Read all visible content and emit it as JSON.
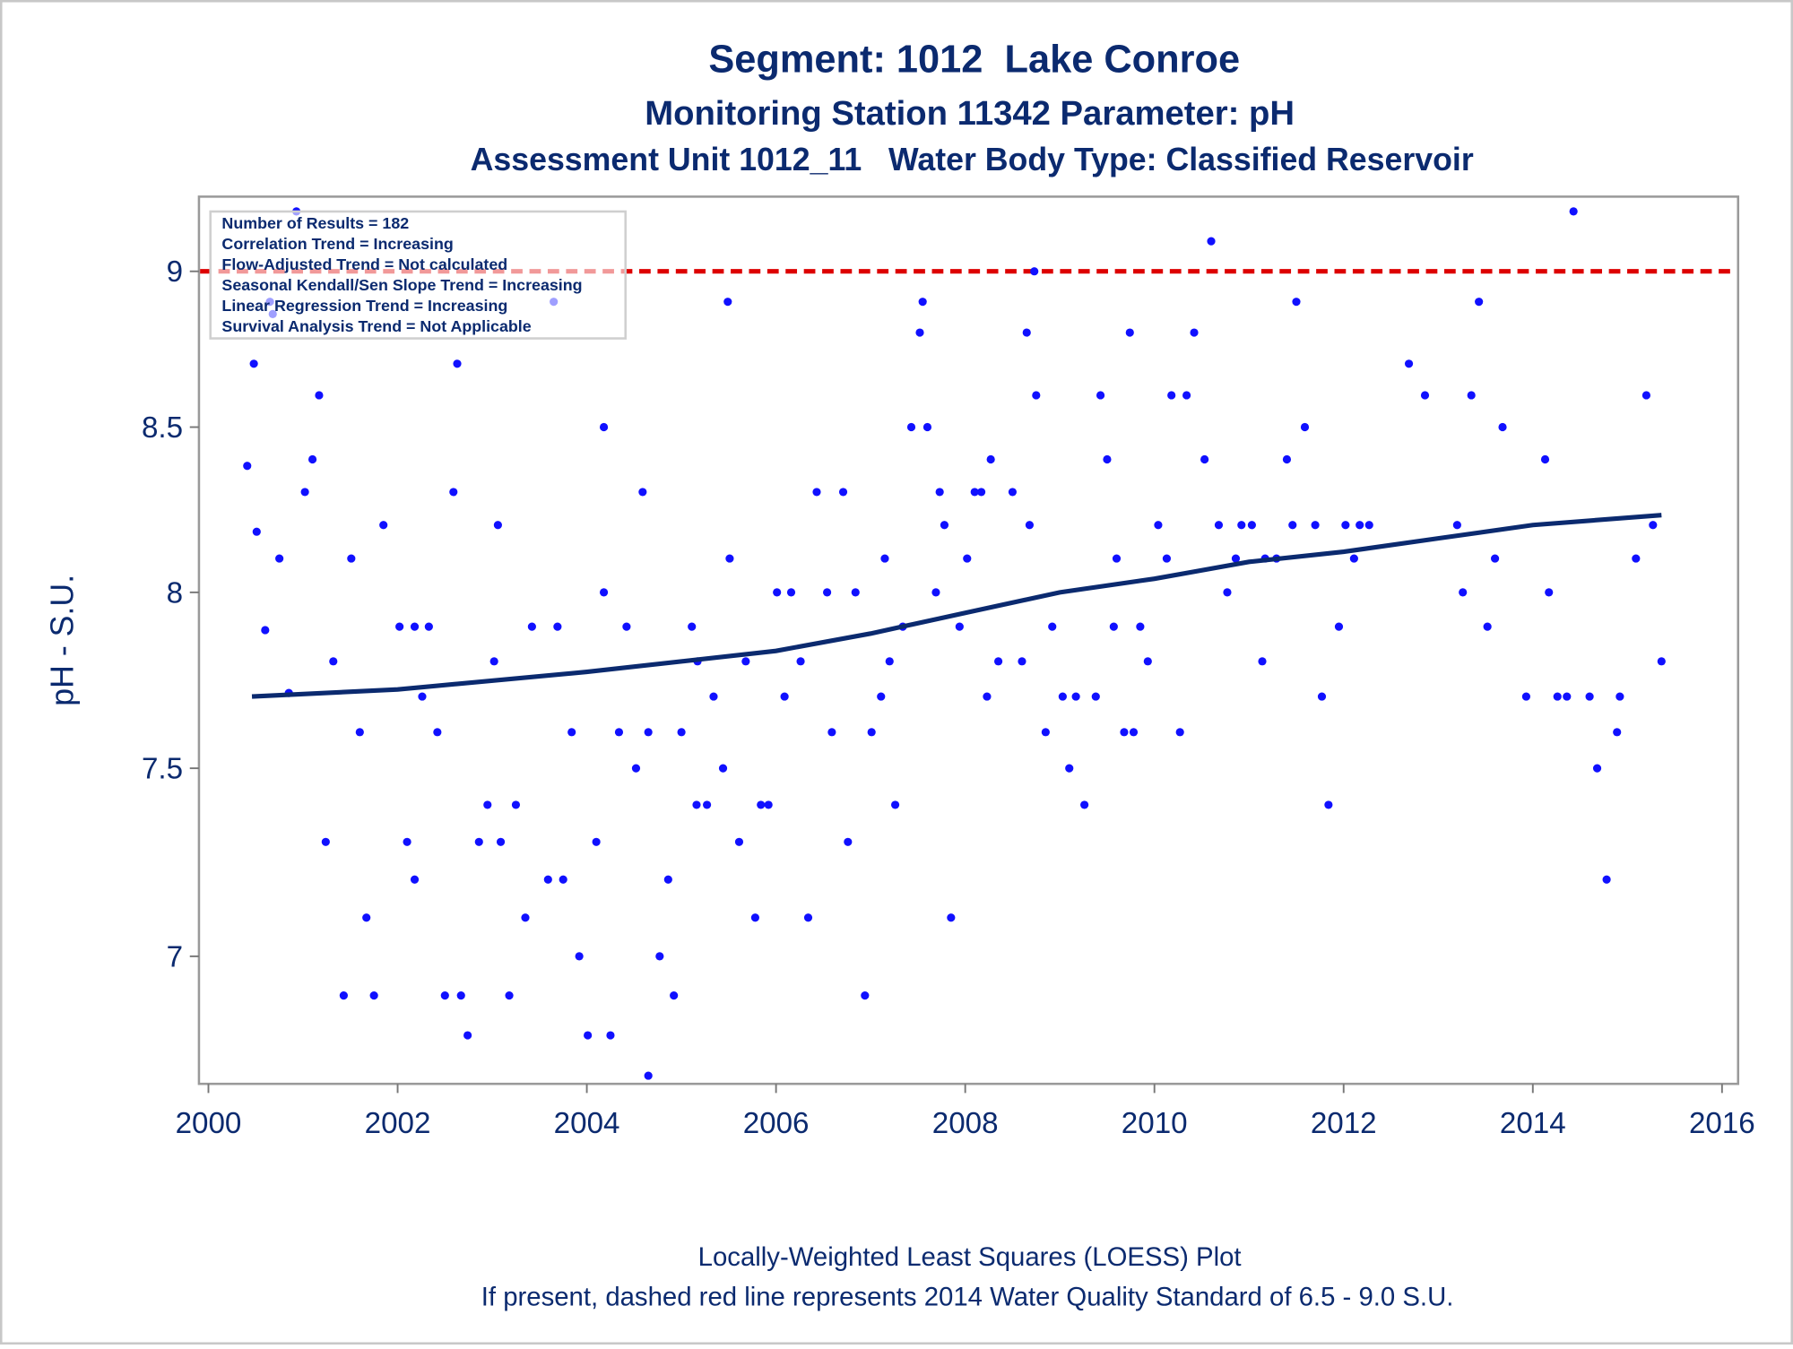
{
  "chart_data": {
    "type": "scatter",
    "title": "Segment: 1012  Lake Conroe",
    "subtitle": "Monitoring Station 11342 Parameter: pH",
    "subtitle2": "Assessment Unit 1012_11   Water Body Type: Classified Reservoir",
    "y_label": "pH - S.U.",
    "annotations": [
      "Number of Results = 182",
      "Correlation Trend = Increasing",
      "Flow-Adjusted Trend = Not calculated",
      "Seasonal Kendall/Sen Slope Trend = Increasing",
      "Linear Regression Trend = Increasing",
      "Survival Analysis Trend = Not Applicable"
    ],
    "footnotes": [
      "Locally-Weighted Least Squares (LOESS) Plot",
      "If present, dashed red line represents 2014 Water Quality Standard of 6.5 - 9.0 S.U."
    ],
    "xlim": [
      1999.9,
      2016.17
    ],
    "xticks": [
      2000,
      2002,
      2004,
      2006,
      2008,
      2010,
      2012,
      2014,
      2016
    ],
    "ylim": [
      6.68,
      9.25
    ],
    "yticks": [
      7,
      7.5,
      8,
      8.5,
      9
    ],
    "log_y": true,
    "grid": false,
    "color": "#1010ff",
    "reference_line": {
      "value": 9,
      "color": "#dd0000"
    },
    "x": [
      2000.41,
      2000.48,
      2000.51,
      2000.6,
      2000.65,
      2000.68,
      2000.75,
      2000.85,
      2000.93,
      2001.02,
      2001.1,
      2001.17,
      2001.24,
      2001.32,
      2001.43,
      2001.51,
      2001.6,
      2001.67,
      2001.75,
      2001.85,
      2002.02,
      2002.1,
      2002.18,
      2002.18,
      2002.26,
      2002.33,
      2002.42,
      2002.5,
      2002.59,
      2002.63,
      2002.67,
      2002.74,
      2002.86,
      2002.95,
      2003.02,
      2003.06,
      2003.09,
      2003.18,
      2003.25,
      2003.35,
      2003.42,
      2003.59,
      2003.65,
      2003.69,
      2003.75,
      2003.84,
      2003.92,
      2004.01,
      2004.1,
      2004.18,
      2004.18,
      2004.25,
      2004.34,
      2004.42,
      2004.52,
      2004.59,
      2004.65,
      2004.65,
      2004.77,
      2004.86,
      2004.92,
      2005.0,
      2005.11,
      2005.16,
      2005.17,
      2005.27,
      2005.34,
      2005.44,
      2005.49,
      2005.51,
      2005.61,
      2005.68,
      2005.78,
      2005.84,
      2005.92,
      2006.01,
      2006.09,
      2006.16,
      2006.26,
      2006.34,
      2006.43,
      2006.54,
      2006.59,
      2006.71,
      2006.76,
      2006.84,
      2006.94,
      2007.01,
      2007.11,
      2007.15,
      2007.2,
      2007.26,
      2007.34,
      2007.43,
      2007.52,
      2007.55,
      2007.6,
      2007.69,
      2007.73,
      2007.78,
      2007.85,
      2007.94,
      2008.02,
      2008.1,
      2008.17,
      2008.23,
      2008.27,
      2008.35,
      2008.5,
      2008.6,
      2008.65,
      2008.68,
      2008.73,
      2008.75,
      2008.85,
      2008.92,
      2009.03,
      2009.1,
      2009.17,
      2009.26,
      2009.38,
      2009.43,
      2009.5,
      2009.57,
      2009.6,
      2009.68,
      2009.74,
      2009.78,
      2009.85,
      2009.93,
      2010.04,
      2010.13,
      2010.18,
      2010.27,
      2010.34,
      2010.42,
      2010.53,
      2010.6,
      2010.68,
      2010.77,
      2010.86,
      2010.92,
      2011.03,
      2011.14,
      2011.17,
      2011.29,
      2011.4,
      2011.46,
      2011.5,
      2011.59,
      2011.7,
      2011.77,
      2011.84,
      2011.95,
      2012.02,
      2012.11,
      2012.17,
      2012.27,
      2012.69,
      2012.86,
      2013.2,
      2013.26,
      2013.35,
      2013.43,
      2013.52,
      2013.6,
      2013.68,
      2013.93,
      2014.13,
      2014.17,
      2014.26,
      2014.36,
      2014.43,
      2014.6,
      2014.68,
      2014.78,
      2014.89,
      2014.92,
      2015.09,
      2015.2,
      2015.27,
      2015.36
    ],
    "values": [
      8.38,
      8.7,
      8.18,
      7.89,
      8.9,
      8.86,
      8.1,
      7.71,
      9.2,
      8.3,
      8.4,
      8.6,
      7.3,
      7.8,
      6.9,
      8.1,
      7.6,
      7.1,
      6.9,
      8.2,
      7.9,
      7.3,
      7.2,
      7.9,
      7.7,
      7.9,
      7.6,
      6.9,
      8.3,
      8.7,
      6.9,
      6.8,
      7.3,
      7.4,
      7.8,
      8.2,
      7.3,
      6.9,
      7.4,
      7.1,
      7.9,
      7.2,
      8.9,
      7.9,
      7.2,
      7.6,
      7.0,
      6.8,
      7.3,
      8.5,
      8.0,
      6.8,
      7.6,
      7.9,
      7.5,
      8.3,
      6.7,
      7.6,
      7.0,
      7.2,
      6.9,
      7.6,
      7.9,
      7.4,
      7.8,
      7.4,
      7.7,
      7.5,
      8.9,
      8.1,
      7.3,
      7.8,
      7.1,
      7.4,
      7.4,
      8.0,
      7.7,
      8.0,
      7.8,
      7.1,
      8.3,
      8.0,
      7.6,
      8.3,
      7.3,
      8.0,
      6.9,
      7.6,
      7.7,
      8.1,
      7.8,
      7.4,
      7.9,
      8.5,
      8.8,
      8.9,
      8.5,
      8.0,
      8.3,
      8.2,
      7.1,
      7.9,
      8.1,
      8.3,
      8.3,
      7.7,
      8.4,
      7.8,
      8.3,
      7.8,
      8.8,
      8.2,
      9.0,
      8.6,
      7.6,
      7.9,
      7.7,
      7.5,
      7.7,
      7.4,
      7.7,
      8.6,
      8.4,
      7.9,
      8.1,
      7.6,
      8.8,
      7.6,
      7.9,
      7.8,
      8.2,
      8.1,
      8.6,
      7.6,
      8.6,
      8.8,
      8.4,
      9.1,
      8.2,
      8.0,
      8.1,
      8.2,
      8.2,
      7.8,
      8.1,
      8.1,
      8.4,
      8.2,
      8.9,
      8.5,
      8.2,
      7.7,
      7.4,
      7.9,
      8.2,
      8.1,
      8.2,
      8.2,
      8.7,
      8.6,
      8.2,
      8.0,
      8.6,
      8.9,
      7.9,
      8.1,
      8.5,
      7.7,
      8.4,
      8.0,
      7.7,
      7.7,
      9.2,
      7.7,
      7.5,
      7.2,
      7.6,
      7.7,
      8.1,
      8.6,
      8.2,
      7.8
    ],
    "trend_line": {
      "color": "#0b2a6f",
      "x": [
        2000.46,
        2002,
        2004,
        2006,
        2007,
        2008,
        2009,
        2010,
        2011,
        2012,
        2013,
        2014,
        2015.36
      ],
      "values": [
        7.7,
        7.72,
        7.77,
        7.83,
        7.88,
        7.94,
        8.0,
        8.04,
        8.09,
        8.12,
        8.16,
        8.2,
        8.23
      ]
    }
  }
}
